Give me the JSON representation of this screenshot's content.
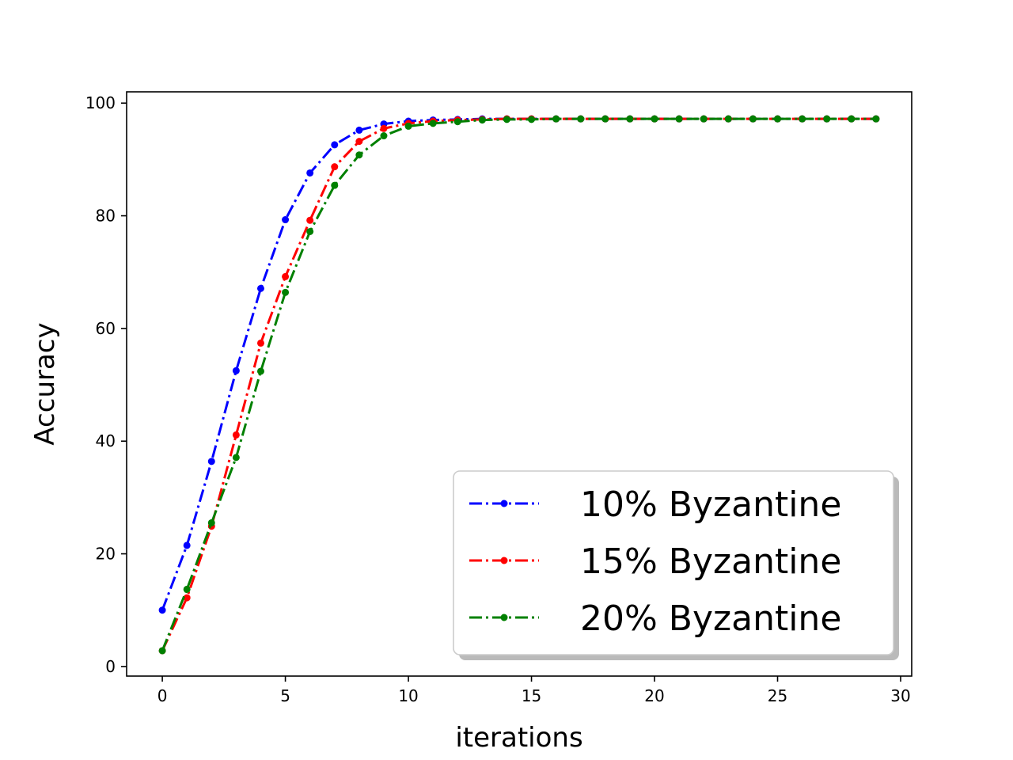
{
  "chart_data": {
    "type": "line",
    "title": "",
    "xlabel": "iterations",
    "ylabel": "Accuracy",
    "xlim": [
      -1.45,
      30.45
    ],
    "ylim": [
      -1.7,
      102.0
    ],
    "xticks": [
      0,
      5,
      10,
      15,
      20,
      25,
      30
    ],
    "yticks": [
      0,
      20,
      40,
      60,
      80,
      100
    ],
    "grid": false,
    "legend_position": "bottom-right",
    "x": [
      0,
      1,
      2,
      3,
      4,
      5,
      6,
      7,
      8,
      9,
      10,
      11,
      12,
      13,
      14,
      15,
      16,
      17,
      18,
      19,
      20,
      21,
      22,
      23,
      24,
      25,
      26,
      27,
      28,
      29
    ],
    "series": [
      {
        "name": "10% Byzantine",
        "color": "#0000ff",
        "values": [
          10.0,
          21.5,
          36.4,
          52.5,
          67.1,
          79.3,
          87.6,
          92.6,
          95.2,
          96.3,
          96.8,
          97.0,
          97.1,
          97.2,
          97.2,
          97.2,
          97.2,
          97.2,
          97.2,
          97.2,
          97.2,
          97.2,
          97.2,
          97.2,
          97.2,
          97.2,
          97.2,
          97.2,
          97.2,
          97.2
        ]
      },
      {
        "name": "15% Byzantine",
        "color": "#ff0000",
        "values": [
          2.8,
          12.2,
          24.9,
          41.1,
          57.4,
          69.2,
          79.2,
          88.7,
          93.2,
          95.5,
          96.4,
          96.8,
          97.0,
          97.1,
          97.2,
          97.2,
          97.2,
          97.2,
          97.2,
          97.2,
          97.2,
          97.2,
          97.2,
          97.2,
          97.2,
          97.2,
          97.2,
          97.2,
          97.2,
          97.2
        ]
      },
      {
        "name": "20% Byzantine",
        "color": "#008000",
        "values": [
          2.8,
          13.7,
          25.5,
          37.1,
          52.4,
          66.4,
          77.2,
          85.4,
          90.8,
          94.2,
          95.9,
          96.4,
          96.7,
          97.0,
          97.1,
          97.1,
          97.2,
          97.2,
          97.2,
          97.2,
          97.2,
          97.2,
          97.2,
          97.2,
          97.2,
          97.2,
          97.2,
          97.2,
          97.2,
          97.2
        ]
      }
    ]
  }
}
